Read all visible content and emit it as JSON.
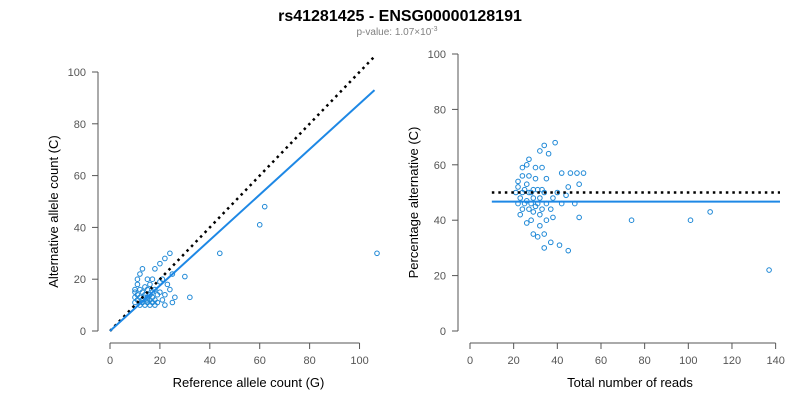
{
  "title": "rs41281425 - ENSG00000128191",
  "subtitle": {
    "prefix": "p-value: 1.07×10",
    "exponent": "-3"
  },
  "colors": {
    "points": "#1e88d6",
    "fit_line": "#1e88e5",
    "reference_line": "#000000",
    "axis": "#555555"
  },
  "chart_data": [
    {
      "type": "scatter",
      "xlabel": "Reference allele count (G)",
      "ylabel": "Alternative allele count (C)",
      "xlim": [
        0,
        107
      ],
      "ylim": [
        0,
        100
      ],
      "xticks": [
        0,
        20,
        40,
        60,
        80,
        100
      ],
      "yticks": [
        0,
        20,
        40,
        60,
        80,
        100
      ],
      "grid": false,
      "reference_line": {
        "style": "dotted",
        "from": [
          0,
          0
        ],
        "to": [
          106,
          106
        ]
      },
      "fit_line": {
        "from": [
          0,
          0
        ],
        "to": [
          106,
          93
        ]
      },
      "points": [
        [
          10,
          11
        ],
        [
          10,
          13
        ],
        [
          10,
          15
        ],
        [
          10,
          16
        ],
        [
          11,
          12
        ],
        [
          11,
          14
        ],
        [
          11,
          18
        ],
        [
          11,
          20
        ],
        [
          12,
          10
        ],
        [
          12,
          13
        ],
        [
          12,
          16
        ],
        [
          12,
          22
        ],
        [
          13,
          11
        ],
        [
          13,
          12
        ],
        [
          13,
          15
        ],
        [
          13,
          24
        ],
        [
          14,
          10
        ],
        [
          14,
          13
        ],
        [
          14,
          14
        ],
        [
          14,
          17
        ],
        [
          15,
          11
        ],
        [
          15,
          12
        ],
        [
          15,
          13
        ],
        [
          15,
          16
        ],
        [
          15,
          20
        ],
        [
          16,
          10
        ],
        [
          16,
          12
        ],
        [
          16,
          14
        ],
        [
          16,
          18
        ],
        [
          17,
          11
        ],
        [
          17,
          13
        ],
        [
          17,
          15
        ],
        [
          17,
          20
        ],
        [
          18,
          10
        ],
        [
          18,
          12
        ],
        [
          18,
          16
        ],
        [
          18,
          24
        ],
        [
          19,
          11
        ],
        [
          19,
          14
        ],
        [
          20,
          15
        ],
        [
          20,
          19
        ],
        [
          20,
          26
        ],
        [
          21,
          12
        ],
        [
          21,
          20
        ],
        [
          22,
          10
        ],
        [
          22,
          14
        ],
        [
          22,
          28
        ],
        [
          23,
          18
        ],
        [
          24,
          16
        ],
        [
          24,
          30
        ],
        [
          25,
          11
        ],
        [
          25,
          22
        ],
        [
          26,
          13
        ],
        [
          30,
          21
        ],
        [
          32,
          13
        ],
        [
          44,
          30
        ],
        [
          60,
          41
        ],
        [
          62,
          48
        ],
        [
          107,
          30
        ]
      ]
    },
    {
      "type": "scatter",
      "xlabel": "Total number of reads",
      "ylabel": "Percentage alternative (C)",
      "xlim": [
        0,
        142
      ],
      "ylim": [
        0,
        100
      ],
      "xticks": [
        0,
        20,
        40,
        60,
        80,
        100,
        120,
        140
      ],
      "yticks": [
        0,
        20,
        40,
        60,
        80,
        100
      ],
      "grid": false,
      "reference_line": {
        "style": "dotted",
        "y": 50
      },
      "fit_line": {
        "y": 46.7
      },
      "points": [
        [
          21,
          50
        ],
        [
          22,
          46
        ],
        [
          22,
          52
        ],
        [
          22,
          54
        ],
        [
          23,
          42
        ],
        [
          23,
          48
        ],
        [
          24,
          44
        ],
        [
          24,
          50
        ],
        [
          24,
          56
        ],
        [
          24,
          59
        ],
        [
          25,
          46
        ],
        [
          25,
          51
        ],
        [
          26,
          39
        ],
        [
          26,
          47
        ],
        [
          26,
          53
        ],
        [
          26,
          60
        ],
        [
          27,
          44
        ],
        [
          27,
          50
        ],
        [
          27,
          56
        ],
        [
          27,
          62
        ],
        [
          28,
          40
        ],
        [
          28,
          46
        ],
        [
          28,
          50
        ],
        [
          29,
          35
        ],
        [
          29,
          43
        ],
        [
          29,
          48
        ],
        [
          29,
          51
        ],
        [
          30,
          45
        ],
        [
          30,
          55
        ],
        [
          30,
          59
        ],
        [
          31,
          34
        ],
        [
          31,
          46
        ],
        [
          31,
          51
        ],
        [
          32,
          38
        ],
        [
          32,
          42
        ],
        [
          32,
          48
        ],
        [
          32,
          65
        ],
        [
          33,
          44
        ],
        [
          33,
          51
        ],
        [
          33,
          59
        ],
        [
          34,
          30
        ],
        [
          34,
          35
        ],
        [
          34,
          50
        ],
        [
          34,
          67
        ],
        [
          35,
          40
        ],
        [
          35,
          46
        ],
        [
          35,
          55
        ],
        [
          36,
          64
        ],
        [
          37,
          32
        ],
        [
          37,
          44
        ],
        [
          38,
          41
        ],
        [
          38,
          48
        ],
        [
          39,
          68
        ],
        [
          40,
          50
        ],
        [
          41,
          31
        ],
        [
          42,
          46
        ],
        [
          42,
          57
        ],
        [
          44,
          49
        ],
        [
          45,
          29
        ],
        [
          45,
          52
        ],
        [
          46,
          57
        ],
        [
          48,
          46
        ],
        [
          49,
          57
        ],
        [
          50,
          41
        ],
        [
          50,
          53
        ],
        [
          52,
          57
        ],
        [
          74,
          40
        ],
        [
          101,
          40
        ],
        [
          110,
          43
        ],
        [
          137,
          22
        ]
      ]
    }
  ]
}
